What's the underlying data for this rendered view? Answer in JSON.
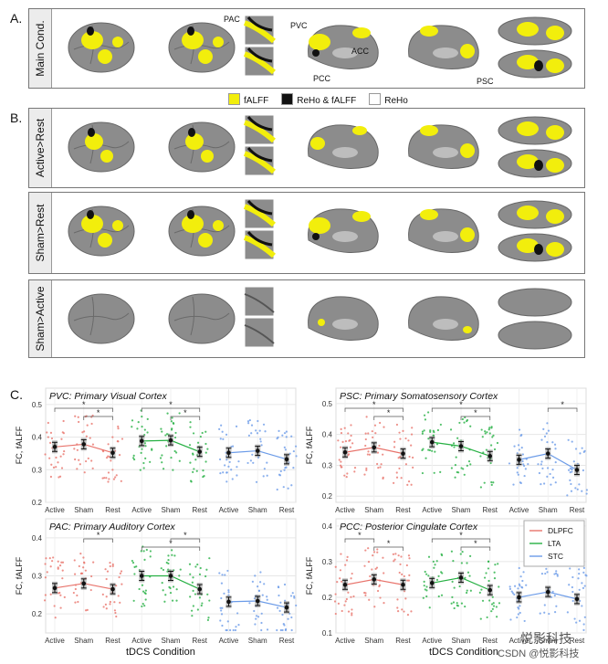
{
  "section_a": {
    "letter": "A.",
    "row_label": "Main Cond.",
    "labels": {
      "pac": "PAC",
      "pvc": "PVC",
      "acc": "ACC",
      "pcc": "PCC",
      "psc": "PSC"
    }
  },
  "legend": {
    "items": [
      {
        "label": "fALFF",
        "color": "#f2ee0c"
      },
      {
        "label": "ReHo & fALFF",
        "color": "#111111"
      },
      {
        "label": "ReHo",
        "color": "#ffffff"
      }
    ]
  },
  "section_b": {
    "letter": "B.",
    "rows": [
      "Active>Rest",
      "Sham>Rest",
      "Sham>Active"
    ]
  },
  "section_c": {
    "letter": "C.",
    "xlabel": "tDCS Condition"
  },
  "watermark": {
    "line1": "悦影科技",
    "line2": "CSDN @悦影科技"
  },
  "chart_data": [
    {
      "type": "scatter",
      "title": "PVC: Primary Visual Cortex",
      "ylabel": "FC, fALFF",
      "ylim": [
        0.2,
        0.55
      ],
      "yticks": [
        "0.2",
        "0.3",
        "0.4",
        "0.5"
      ],
      "categories": [
        "Active",
        "Sham",
        "Rest",
        "Active",
        "Sham",
        "Rest",
        "Active",
        "Sham",
        "Rest"
      ],
      "series": [
        {
          "name": "DLPFC",
          "color": "#e8746c",
          "values": [
            0.37,
            0.378,
            0.352
          ]
        },
        {
          "name": "LTA",
          "color": "#26b043",
          "values": [
            0.388,
            0.39,
            0.355
          ]
        },
        {
          "name": "STC",
          "color": "#6b9be8",
          "values": [
            0.352,
            0.358,
            0.332
          ]
        }
      ],
      "significance": [
        {
          "from": 0,
          "to": 2,
          "label": "*"
        },
        {
          "from": 1,
          "to": 2,
          "label": "*"
        },
        {
          "from": 3,
          "to": 5,
          "label": "*"
        },
        {
          "from": 4,
          "to": 5,
          "label": "*"
        }
      ]
    },
    {
      "type": "scatter",
      "title": "PSC: Primary Somatosensory Cortex",
      "ylabel": "FC, fALFF",
      "ylim": [
        0.18,
        0.55
      ],
      "yticks": [
        "0.2",
        "0.3",
        "0.4",
        "0.5"
      ],
      "categories": [
        "Active",
        "Sham",
        "Rest",
        "Active",
        "Sham",
        "Rest",
        "Active",
        "Sham",
        "Rest"
      ],
      "series": [
        {
          "name": "DLPFC",
          "color": "#e8746c",
          "values": [
            0.342,
            0.358,
            0.338
          ]
        },
        {
          "name": "LTA",
          "color": "#26b043",
          "values": [
            0.375,
            0.362,
            0.33
          ]
        },
        {
          "name": "STC",
          "color": "#6b9be8",
          "values": [
            0.318,
            0.338,
            0.285
          ]
        }
      ],
      "significance": [
        {
          "from": 0,
          "to": 2,
          "label": "*"
        },
        {
          "from": 1,
          "to": 2,
          "label": "*"
        },
        {
          "from": 3,
          "to": 5,
          "label": "*"
        },
        {
          "from": 4,
          "to": 5,
          "label": "*"
        },
        {
          "from": 7,
          "to": 8,
          "label": "*"
        }
      ]
    },
    {
      "type": "scatter",
      "title": "PAC: Primary Auditory Cortex",
      "ylabel": "FC, fALFF",
      "ylim": [
        0.15,
        0.45
      ],
      "yticks": [
        "0.2",
        "0.3",
        "0.4"
      ],
      "categories": [
        "Active",
        "Sham",
        "Rest",
        "Active",
        "Sham",
        "Rest",
        "Active",
        "Sham",
        "Rest"
      ],
      "series": [
        {
          "name": "DLPFC",
          "color": "#e8746c",
          "values": [
            0.268,
            0.28,
            0.265
          ]
        },
        {
          "name": "LTA",
          "color": "#26b043",
          "values": [
            0.3,
            0.3,
            0.265
          ]
        },
        {
          "name": "STC",
          "color": "#6b9be8",
          "values": [
            0.232,
            0.234,
            0.217
          ]
        }
      ],
      "significance": [
        {
          "from": 1,
          "to": 2,
          "label": "*"
        },
        {
          "from": 3,
          "to": 5,
          "label": "*"
        },
        {
          "from": 4,
          "to": 5,
          "label": "*"
        }
      ]
    },
    {
      "type": "scatter",
      "title": "PCC: Posterior Cingulate Cortex",
      "ylabel": "FC, fALFF",
      "ylim": [
        0.1,
        0.42
      ],
      "yticks": [
        "0.1",
        "0.2",
        "0.3",
        "0.4"
      ],
      "categories": [
        "Active",
        "Sham",
        "Rest",
        "Active",
        "Sham",
        "Rest",
        "Active",
        "Sham",
        "Rest"
      ],
      "series": [
        {
          "name": "DLPFC",
          "color": "#e8746c",
          "values": [
            0.235,
            0.25,
            0.235
          ]
        },
        {
          "name": "LTA",
          "color": "#26b043",
          "values": [
            0.24,
            0.255,
            0.22
          ]
        },
        {
          "name": "STC",
          "color": "#6b9be8",
          "values": [
            0.2,
            0.215,
            0.195
          ]
        }
      ],
      "significance": [
        {
          "from": 0,
          "to": 1,
          "label": "*"
        },
        {
          "from": 1,
          "to": 2,
          "label": "*"
        },
        {
          "from": 3,
          "to": 5,
          "label": "*"
        },
        {
          "from": 4,
          "to": 5,
          "label": "*"
        }
      ],
      "legend": [
        "DLPFC",
        "LTA",
        "STC"
      ]
    }
  ]
}
